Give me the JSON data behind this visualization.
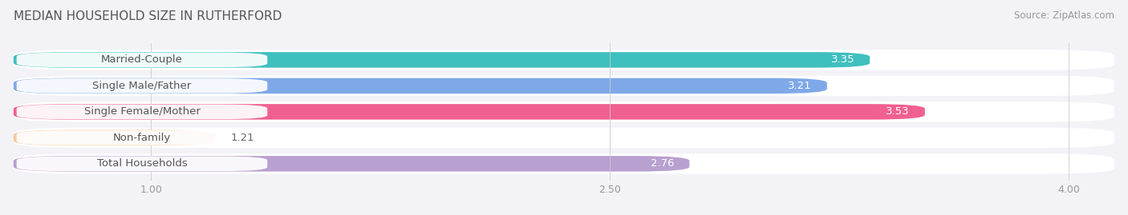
{
  "title": "MEDIAN HOUSEHOLD SIZE IN RUTHERFORD",
  "source": "Source: ZipAtlas.com",
  "categories": [
    "Married-Couple",
    "Single Male/Father",
    "Single Female/Mother",
    "Non-family",
    "Total Households"
  ],
  "values": [
    3.35,
    3.21,
    3.53,
    1.21,
    2.76
  ],
  "bar_colors": [
    "#40bfbf",
    "#7fa8e8",
    "#f06090",
    "#f5c8a0",
    "#b8a0d0"
  ],
  "background_color": "#f2f2f7",
  "bar_bg_color": "#ffffff",
  "label_bg_color": "#ffffff",
  "label_text_color": "#555555",
  "value_text_color": "#ffffff",
  "xlim_min": 0.55,
  "xlim_max": 4.15,
  "xticks": [
    1.0,
    2.5,
    4.0
  ],
  "label_fontsize": 9.5,
  "value_fontsize": 9.5,
  "title_fontsize": 11,
  "source_fontsize": 8.5
}
